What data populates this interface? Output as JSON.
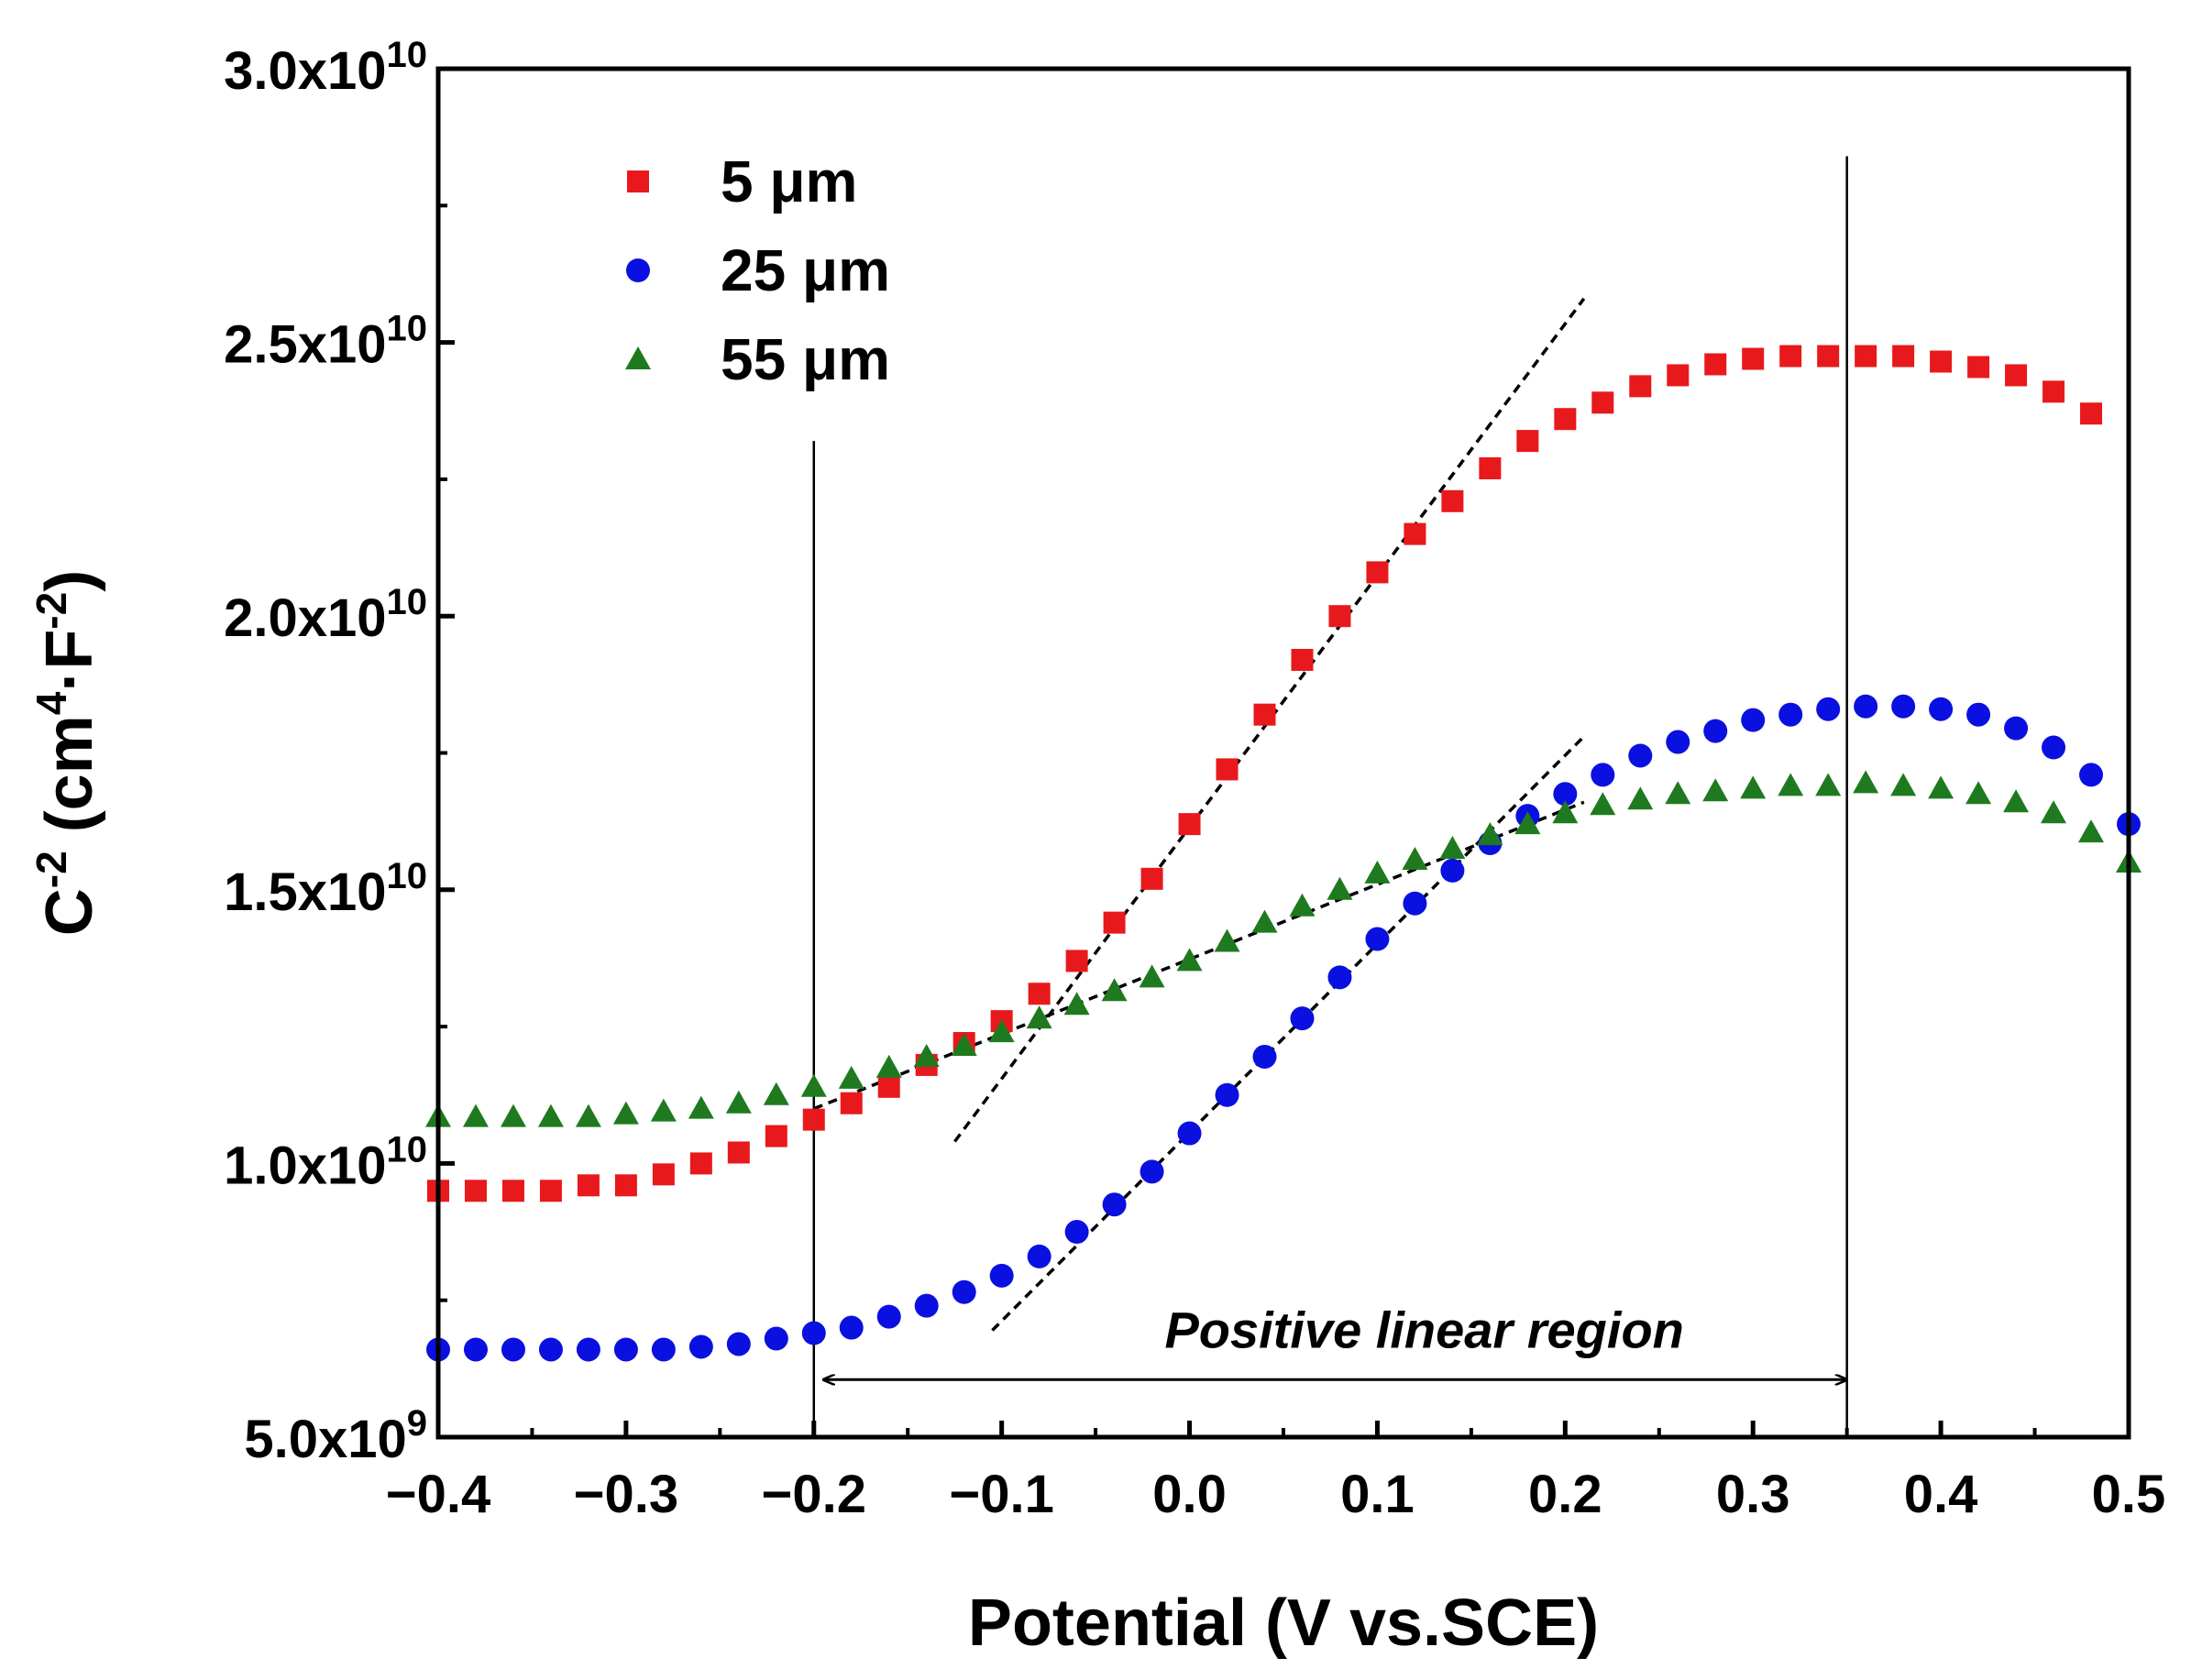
{
  "chart_data": {
    "type": "scatter",
    "xlabel": "Potential (V vs.SCE)",
    "ylabel": {
      "base": "C",
      "base_sup": "-2",
      "unit_open": " (cm",
      "unit_sup1": "4",
      "unit_mid": "·F",
      "unit_sup2": "-2",
      "unit_close": ")"
    },
    "xlim": [
      -0.4,
      0.5
    ],
    "ylim": [
      5000000000,
      30000000000
    ],
    "x_ticks": [
      {
        "value": -0.4,
        "label": "−0.4"
      },
      {
        "value": -0.3,
        "label": "−0.3"
      },
      {
        "value": -0.2,
        "label": "−0.2"
      },
      {
        "value": -0.1,
        "label": "−0.1"
      },
      {
        "value": 0.0,
        "label": "0.0"
      },
      {
        "value": 0.1,
        "label": "0.1"
      },
      {
        "value": 0.2,
        "label": "0.2"
      },
      {
        "value": 0.3,
        "label": "0.3"
      },
      {
        "value": 0.4,
        "label": "0.4"
      },
      {
        "value": 0.5,
        "label": "0.5"
      }
    ],
    "y_ticks": [
      {
        "value": 5000000000,
        "mantissa": "5.0x10",
        "exp": "9"
      },
      {
        "value": 10000000000,
        "mantissa": "1.0x10",
        "exp": "10"
      },
      {
        "value": 15000000000,
        "mantissa": "1.5x10",
        "exp": "10"
      },
      {
        "value": 20000000000,
        "mantissa": "2.0x10",
        "exp": "10"
      },
      {
        "value": 25000000000,
        "mantissa": "2.5x10",
        "exp": "10"
      },
      {
        "value": 30000000000,
        "mantissa": "3.0x10",
        "exp": "10"
      }
    ],
    "series": [
      {
        "name": "5 μm",
        "marker": "square",
        "color": "#e8191c",
        "x": [
          -0.4,
          -0.38,
          -0.36,
          -0.34,
          -0.32,
          -0.3,
          -0.28,
          -0.26,
          -0.24,
          -0.22,
          -0.2,
          -0.18,
          -0.16,
          -0.14,
          -0.12,
          -0.1,
          -0.08,
          -0.06,
          -0.04,
          -0.02,
          0.0,
          0.02,
          0.04,
          0.06,
          0.08,
          0.1,
          0.12,
          0.14,
          0.16,
          0.18,
          0.2,
          0.22,
          0.24,
          0.26,
          0.28,
          0.3,
          0.32,
          0.34,
          0.36,
          0.38,
          0.4,
          0.42,
          0.44,
          0.46,
          0.48
        ],
        "y": [
          9500000000.0,
          9500000000.0,
          9500000000.0,
          9500000000.0,
          9600000000.0,
          9600000000.0,
          9800000000.0,
          10000000000.0,
          10200000000.0,
          10500000000.0,
          10800000000.0,
          11100000000.0,
          11400000000.0,
          11800000000.0,
          12200000000.0,
          12600000000.0,
          13100000000.0,
          13700000000.0,
          14400000000.0,
          15200000000.0,
          16200000000.0,
          17200000000.0,
          18200000000.0,
          19200000000.0,
          20000000000.0,
          20800000000.0,
          21500000000.0,
          22100000000.0,
          22700000000.0,
          23200000000.0,
          23600000000.0,
          23900000000.0,
          24200000000.0,
          24400000000.0,
          24600000000.0,
          24700000000.0,
          24750000000.0,
          24750000000.0,
          24750000000.0,
          24750000000.0,
          24650000000.0,
          24550000000.0,
          24400000000.0,
          24100000000.0,
          23700000000.0
        ]
      },
      {
        "name": "25 μm",
        "marker": "circle",
        "color": "#0a10e0",
        "x": [
          -0.4,
          -0.38,
          -0.36,
          -0.34,
          -0.32,
          -0.3,
          -0.28,
          -0.26,
          -0.24,
          -0.22,
          -0.2,
          -0.18,
          -0.16,
          -0.14,
          -0.12,
          -0.1,
          -0.08,
          -0.06,
          -0.04,
          -0.02,
          0.0,
          0.02,
          0.04,
          0.06,
          0.08,
          0.1,
          0.12,
          0.14,
          0.16,
          0.18,
          0.2,
          0.22,
          0.24,
          0.26,
          0.28,
          0.3,
          0.32,
          0.34,
          0.36,
          0.38,
          0.4,
          0.42,
          0.44,
          0.46,
          0.48,
          0.5
        ],
        "y": [
          6600000000.0,
          6600000000.0,
          6600000000.0,
          6600000000.0,
          6600000000.0,
          6600000000.0,
          6600000000.0,
          6650000000.0,
          6700000000.0,
          6800000000.0,
          6900000000.0,
          7000000000.0,
          7200000000.0,
          7400000000.0,
          7650000000.0,
          7950000000.0,
          8300000000.0,
          8750000000.0,
          9250000000.0,
          9850000000.0,
          10550000000.0,
          11250000000.0,
          11950000000.0,
          12650000000.0,
          13400000000.0,
          14100000000.0,
          14750000000.0,
          15350000000.0,
          15850000000.0,
          16350000000.0,
          16750000000.0,
          17100000000.0,
          17450000000.0,
          17700000000.0,
          17900000000.0,
          18100000000.0,
          18200000000.0,
          18300000000.0,
          18350000000.0,
          18350000000.0,
          18300000000.0,
          18200000000.0,
          17950000000.0,
          17600000000.0,
          17100000000.0,
          16200000000.0
        ]
      },
      {
        "name": "55 μm",
        "marker": "triangle",
        "color": "#1f7a1f",
        "x": [
          -0.4,
          -0.38,
          -0.36,
          -0.34,
          -0.32,
          -0.3,
          -0.28,
          -0.26,
          -0.24,
          -0.22,
          -0.2,
          -0.18,
          -0.16,
          -0.14,
          -0.12,
          -0.1,
          -0.08,
          -0.06,
          -0.04,
          -0.02,
          0.0,
          0.02,
          0.04,
          0.06,
          0.08,
          0.1,
          0.12,
          0.14,
          0.16,
          0.18,
          0.2,
          0.22,
          0.24,
          0.26,
          0.28,
          0.3,
          0.32,
          0.34,
          0.36,
          0.38,
          0.4,
          0.42,
          0.44,
          0.46,
          0.48,
          0.5
        ],
        "y": [
          10850000000.0,
          10850000000.0,
          10850000000.0,
          10850000000.0,
          10850000000.0,
          10900000000.0,
          10950000000.0,
          11000000000.0,
          11100000000.0,
          11250000000.0,
          11400000000.0,
          11550000000.0,
          11750000000.0,
          11950000000.0,
          12150000000.0,
          12400000000.0,
          12650000000.0,
          12900000000.0,
          13150000000.0,
          13400000000.0,
          13700000000.0,
          14050000000.0,
          14400000000.0,
          14700000000.0,
          15000000000.0,
          15300000000.0,
          15550000000.0,
          15750000000.0,
          16000000000.0,
          16200000000.0,
          16400000000.0,
          16550000000.0,
          16650000000.0,
          16750000000.0,
          16800000000.0,
          16850000000.0,
          16900000000.0,
          16900000000.0,
          16950000000.0,
          16900000000.0,
          16850000000.0,
          16750000000.0,
          16600000000.0,
          16400000000.0,
          16050000000.0,
          15500000000.0
        ]
      }
    ],
    "fit_lines": [
      {
        "x1": -0.125,
        "y1": 10400000000.0,
        "x2": 0.21,
        "y2": 25800000000.0
      },
      {
        "x1": -0.105,
        "y1": 6950000000.0,
        "x2": 0.21,
        "y2": 17800000000.0
      },
      {
        "x1": -0.2,
        "y1": 11000000000.0,
        "x2": 0.21,
        "y2": 16600000000.0
      }
    ],
    "vertical_lines": [
      {
        "x": -0.2,
        "y_top": 23200000000.0
      },
      {
        "x": 0.35,
        "y_top": 28400000000.0
      }
    ],
    "annotation": {
      "text": "Positive linear region",
      "x_start": -0.195,
      "x_end": 0.35,
      "arrow_y": 6050000000.0,
      "text_x": 0.125,
      "text_y": 7000000000.0
    },
    "legend": {
      "position": "top-left"
    }
  }
}
